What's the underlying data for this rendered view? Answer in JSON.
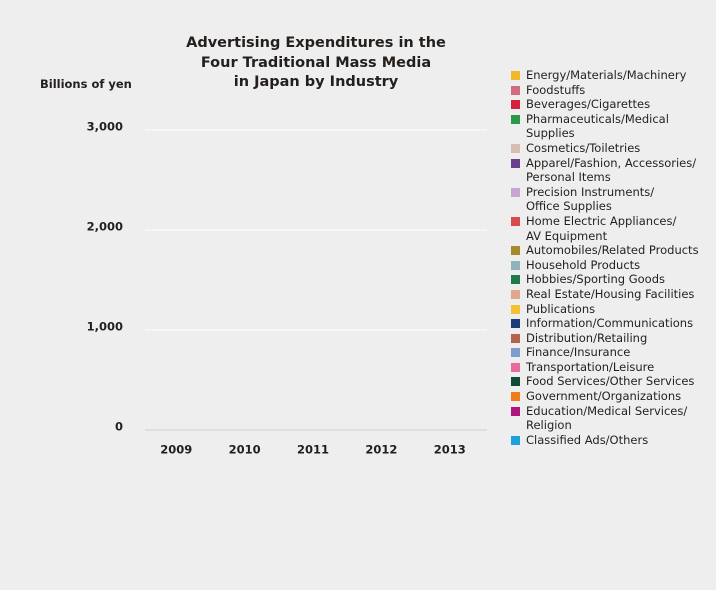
{
  "chart_data": {
    "type": "stacked-bar",
    "title": "Advertising Expenditures in the\nFour Traditional Mass Media\nin Japan by Industry",
    "y_label": "Billions of yen",
    "categories": [
      "2009",
      "2010",
      "2011",
      "2012",
      "2013"
    ],
    "ylim": [
      0,
      3000
    ],
    "yticks": [
      0,
      {
        "value": 1000,
        "label": "1,000"
      },
      {
        "value": 2000,
        "label": "2,000"
      },
      {
        "value": 3000,
        "label": "3,000"
      }
    ],
    "grid": true,
    "series": [
      {
        "name": "Energy/Materials/Machinery",
        "color": "#f0b92c",
        "values": [
          null,
          null,
          null,
          null,
          null
        ]
      },
      {
        "name": "Foodstuffs",
        "color": "#d16b7f",
        "values": [
          null,
          null,
          null,
          null,
          null
        ]
      },
      {
        "name": "Beverages/Cigarettes",
        "color": "#d3203d",
        "values": [
          null,
          null,
          null,
          null,
          null
        ]
      },
      {
        "name": "Pharmaceuticals/Medical Supplies",
        "color": "#2a9a4a",
        "values": [
          null,
          null,
          null,
          null,
          null
        ]
      },
      {
        "name": "Cosmetics/Toiletries",
        "color": "#d9bdb0",
        "values": [
          null,
          null,
          null,
          null,
          null
        ]
      },
      {
        "name": "Apparel/Fashion, Accessories/\nPersonal Items",
        "color": "#6b3f8e",
        "values": [
          null,
          null,
          null,
          null,
          null
        ]
      },
      {
        "name": "Precision Instruments/\nOffice Supplies",
        "color": "#c9a6d2",
        "values": [
          null,
          null,
          null,
          null,
          null
        ]
      },
      {
        "name": "Home Electric Appliances/\nAV Equipment",
        "color": "#d94b4b",
        "values": [
          null,
          null,
          null,
          null,
          null
        ]
      },
      {
        "name": "Automobiles/Related Products",
        "color": "#a88a2e",
        "values": [
          null,
          null,
          null,
          null,
          null
        ]
      },
      {
        "name": "Household Products",
        "color": "#8fb4bd",
        "values": [
          null,
          null,
          null,
          null,
          null
        ]
      },
      {
        "name": "Hobbies/Sporting Goods",
        "color": "#1f7c4a",
        "values": [
          null,
          null,
          null,
          null,
          null
        ]
      },
      {
        "name": "Real Estate/Housing Facilities",
        "color": "#e3a88b",
        "values": [
          null,
          null,
          null,
          null,
          null
        ]
      },
      {
        "name": "Publications",
        "color": "#f2c230",
        "values": [
          null,
          null,
          null,
          null,
          null
        ]
      },
      {
        "name": "Information/Communications",
        "color": "#1c3c7c",
        "values": [
          null,
          null,
          null,
          null,
          null
        ]
      },
      {
        "name": "Distribution/Retailing",
        "color": "#b5624a",
        "values": [
          null,
          null,
          null,
          null,
          null
        ]
      },
      {
        "name": "Finance/Insurance",
        "color": "#7f9ccf",
        "values": [
          null,
          null,
          null,
          null,
          null
        ]
      },
      {
        "name": "Transportation/Leisure",
        "color": "#e96a9e",
        "values": [
          null,
          null,
          null,
          null,
          null
        ]
      },
      {
        "name": "Food Services/Other Services",
        "color": "#0f4a36",
        "values": [
          null,
          null,
          null,
          null,
          null
        ]
      },
      {
        "name": "Government/Organizations",
        "color": "#ee7d1a",
        "values": [
          null,
          null,
          null,
          null,
          null
        ]
      },
      {
        "name": "Education/Medical Services/\nReligion",
        "color": "#b0127e",
        "values": [
          null,
          null,
          null,
          null,
          null
        ]
      },
      {
        "name": "Classified Ads/Others",
        "color": "#1ea0dc",
        "values": [
          null,
          null,
          null,
          null,
          null
        ]
      }
    ]
  }
}
